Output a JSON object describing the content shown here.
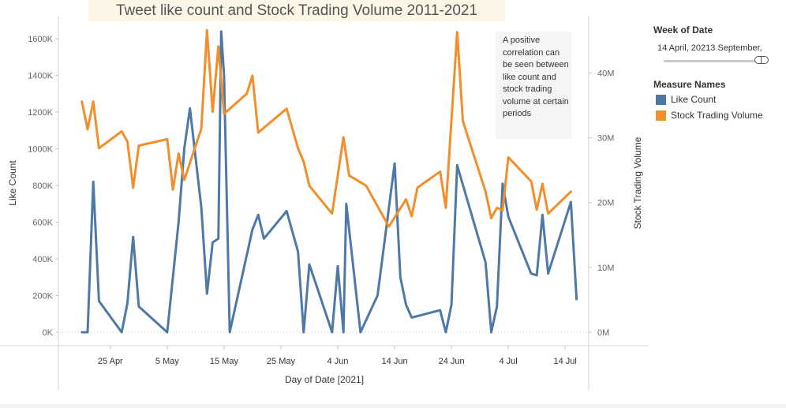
{
  "chart_data": {
    "type": "line",
    "title": "Tweet like count and Stock Trading Volume 2011-2021",
    "xlabel": "Day of Date [2021]",
    "ylabel_left": "Like Count",
    "ylabel_right": "Stock Trading Volume",
    "x_ticks": [
      {
        "label": "25 Apr",
        "date": "2021-04-25"
      },
      {
        "label": "5 May",
        "date": "2021-05-05"
      },
      {
        "label": "15 May",
        "date": "2021-05-15"
      },
      {
        "label": "25 May",
        "date": "2021-05-25"
      },
      {
        "label": "4 Jun",
        "date": "2021-06-04"
      },
      {
        "label": "14 Jun",
        "date": "2021-06-14"
      },
      {
        "label": "24 Jun",
        "date": "2021-06-24"
      },
      {
        "label": "4 Jul",
        "date": "2021-07-04"
      },
      {
        "label": "14 Jul",
        "date": "2021-07-14"
      }
    ],
    "y_left_ticks": [
      {
        "label": "0K",
        "value": 0
      },
      {
        "label": "200K",
        "value": 200000
      },
      {
        "label": "400K",
        "value": 400000
      },
      {
        "label": "600K",
        "value": 600000
      },
      {
        "label": "800K",
        "value": 800000
      },
      {
        "label": "1000K",
        "value": 1000000
      },
      {
        "label": "1200K",
        "value": 1200000
      },
      {
        "label": "1400K",
        "value": 1400000
      },
      {
        "label": "1600K",
        "value": 1600000
      }
    ],
    "y_right_ticks": [
      {
        "label": "0M",
        "value": 0
      },
      {
        "label": "10M",
        "value": 10000000
      },
      {
        "label": "20M",
        "value": 20000000
      },
      {
        "label": "30M",
        "value": 30000000
      },
      {
        "label": "40M",
        "value": 40000000
      }
    ],
    "x_range": [
      "2021-04-16",
      "2021-07-18"
    ],
    "y_left_range": [
      0,
      1660000
    ],
    "y_right_range": [
      0,
      47000000
    ],
    "grid": false,
    "legend_position": "right",
    "series": [
      {
        "name": "Like Count",
        "axis": "left",
        "color": "#4e79a7",
        "points": [
          [
            "2021-04-20",
            0
          ],
          [
            "2021-04-21",
            0
          ],
          [
            "2021-04-22",
            820000
          ],
          [
            "2021-04-23",
            170000
          ],
          [
            "2021-04-27",
            0
          ],
          [
            "2021-04-28",
            160000
          ],
          [
            "2021-04-29",
            520000
          ],
          [
            "2021-04-30",
            140000
          ],
          [
            "2021-05-05",
            0
          ],
          [
            "2021-05-07",
            600000
          ],
          [
            "2021-05-08",
            1000000
          ],
          [
            "2021-05-09",
            1220000
          ],
          [
            "2021-05-11",
            680000
          ],
          [
            "2021-05-12",
            210000
          ],
          [
            "2021-05-13",
            490000
          ],
          [
            "2021-05-14",
            510000
          ],
          [
            "2021-05-14T12:00",
            1640000
          ],
          [
            "2021-05-15",
            1400000
          ],
          [
            "2021-05-16",
            0
          ],
          [
            "2021-05-20",
            560000
          ],
          [
            "2021-05-21",
            640000
          ],
          [
            "2021-05-22",
            510000
          ],
          [
            "2021-05-26",
            660000
          ],
          [
            "2021-05-28",
            440000
          ],
          [
            "2021-05-29",
            0
          ],
          [
            "2021-05-30",
            370000
          ],
          [
            "2021-06-03",
            0
          ],
          [
            "2021-06-04",
            360000
          ],
          [
            "2021-06-05",
            0
          ],
          [
            "2021-06-05T12:00",
            700000
          ],
          [
            "2021-06-08",
            0
          ],
          [
            "2021-06-11",
            200000
          ],
          [
            "2021-06-14",
            920000
          ],
          [
            "2021-06-15",
            300000
          ],
          [
            "2021-06-16",
            150000
          ],
          [
            "2021-06-17",
            80000
          ],
          [
            "2021-06-22",
            120000
          ],
          [
            "2021-06-23",
            0
          ],
          [
            "2021-06-24",
            150000
          ],
          [
            "2021-06-25",
            910000
          ],
          [
            "2021-06-30",
            380000
          ],
          [
            "2021-07-01",
            0
          ],
          [
            "2021-07-02",
            140000
          ],
          [
            "2021-07-03",
            810000
          ],
          [
            "2021-07-04",
            630000
          ],
          [
            "2021-07-08",
            320000
          ],
          [
            "2021-07-09",
            310000
          ],
          [
            "2021-07-10",
            640000
          ],
          [
            "2021-07-11",
            320000
          ],
          [
            "2021-07-15",
            710000
          ],
          [
            "2021-07-16",
            180000
          ]
        ]
      },
      {
        "name": "Stock Trading Volume",
        "axis": "right",
        "color": "#f28e2b",
        "points": [
          [
            "2021-04-20",
            35600000
          ],
          [
            "2021-04-21",
            31300000
          ],
          [
            "2021-04-22",
            35600000
          ],
          [
            "2021-04-23",
            28400000
          ],
          [
            "2021-04-27",
            31000000
          ],
          [
            "2021-04-28",
            29400000
          ],
          [
            "2021-04-29",
            22300000
          ],
          [
            "2021-04-30",
            28800000
          ],
          [
            "2021-05-05",
            29800000
          ],
          [
            "2021-05-06",
            22000000
          ],
          [
            "2021-05-07",
            27600000
          ],
          [
            "2021-05-08",
            23500000
          ],
          [
            "2021-05-11",
            31400000
          ],
          [
            "2021-05-12",
            46600000
          ],
          [
            "2021-05-13",
            34000000
          ],
          [
            "2021-05-14",
            44100000
          ],
          [
            "2021-05-15",
            33700000
          ],
          [
            "2021-05-19",
            36800000
          ],
          [
            "2021-05-20",
            39600000
          ],
          [
            "2021-05-21",
            30800000
          ],
          [
            "2021-05-26",
            34500000
          ],
          [
            "2021-05-28",
            28400000
          ],
          [
            "2021-05-29",
            26300000
          ],
          [
            "2021-05-30",
            22600000
          ],
          [
            "2021-06-03",
            18300000
          ],
          [
            "2021-06-05",
            30100000
          ],
          [
            "2021-06-06",
            24200000
          ],
          [
            "2021-06-09",
            22600000
          ],
          [
            "2021-06-13",
            16300000
          ],
          [
            "2021-06-16",
            20500000
          ],
          [
            "2021-06-17",
            17900000
          ],
          [
            "2021-06-18",
            22300000
          ],
          [
            "2021-06-22",
            24800000
          ],
          [
            "2021-06-23",
            19200000
          ],
          [
            "2021-06-25",
            46300000
          ],
          [
            "2021-06-26",
            32600000
          ],
          [
            "2021-06-30",
            21700000
          ],
          [
            "2021-07-01",
            17600000
          ],
          [
            "2021-07-02",
            19200000
          ],
          [
            "2021-07-03",
            18800000
          ],
          [
            "2021-07-04",
            27000000
          ],
          [
            "2021-07-08",
            23300000
          ],
          [
            "2021-07-09",
            18900000
          ],
          [
            "2021-07-10",
            22900000
          ],
          [
            "2021-07-11",
            18300000
          ],
          [
            "2021-07-15",
            21700000
          ]
        ]
      }
    ],
    "annotation": "A positive correlation can be seen between like count and stock trading volume at certain periods"
  },
  "sidebar": {
    "week_title": "Week of Date",
    "week_value": "14 April, 20213 September,",
    "measure_title": "Measure Names"
  }
}
